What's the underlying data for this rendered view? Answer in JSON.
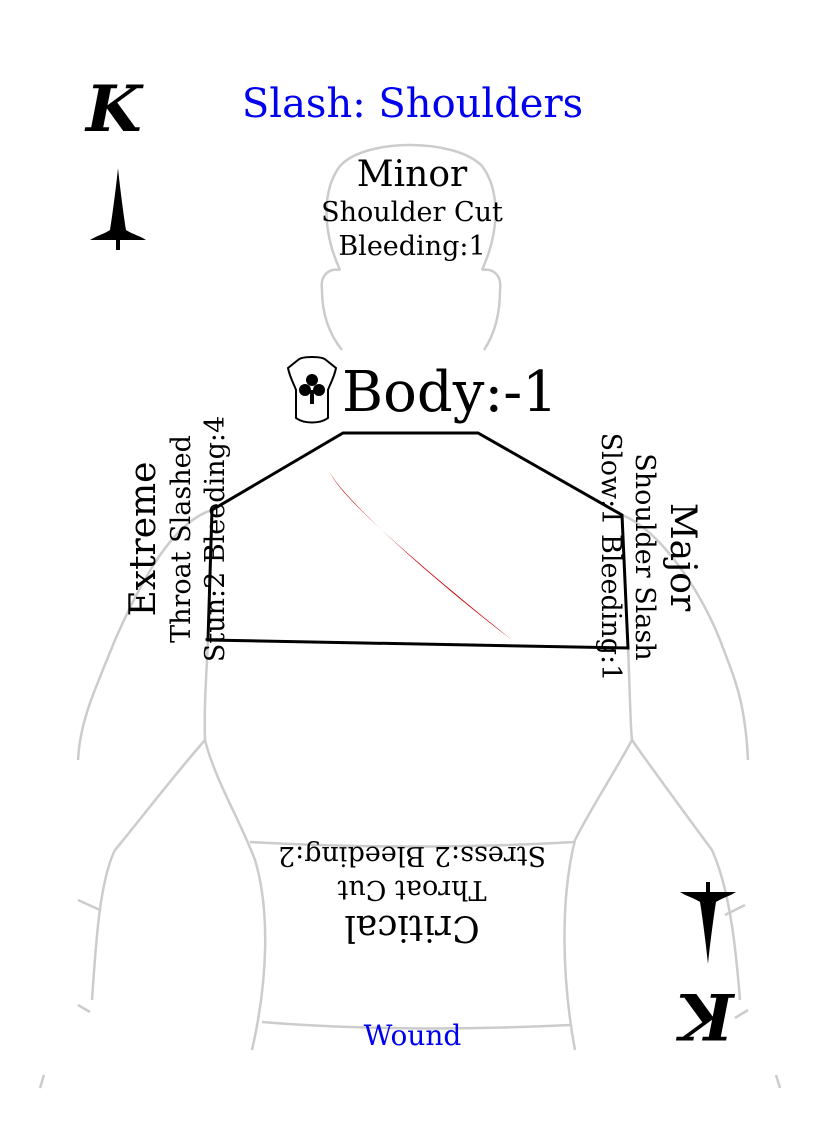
{
  "card": {
    "title": "Slash: Shoulders",
    "rank": "K",
    "body_stat": "Body:-1",
    "footer": "Wound",
    "colors": {
      "title": "#0000ee",
      "footer": "#0000ee",
      "wound_mark": "#cc0000",
      "outline": "#cccccc",
      "region": "#000000"
    }
  },
  "minor": {
    "heading": "Minor",
    "line1": "Shoulder Cut",
    "line2": "Bleeding:1"
  },
  "major": {
    "heading": "Major",
    "line1": "Shoulder Slash",
    "line2": "Slow:1 Bleeding:1"
  },
  "extreme": {
    "heading": "Extreme",
    "line1": "Throat Slashed",
    "line2": "Stun:2 Bleeding:4"
  },
  "critical": {
    "heading": "Critical",
    "line1": "Throat Cut",
    "line2": "Stress:2 Bleeding:2"
  },
  "icons": {
    "suit": "dagger-suit-icon",
    "body": "torso-club-icon"
  }
}
